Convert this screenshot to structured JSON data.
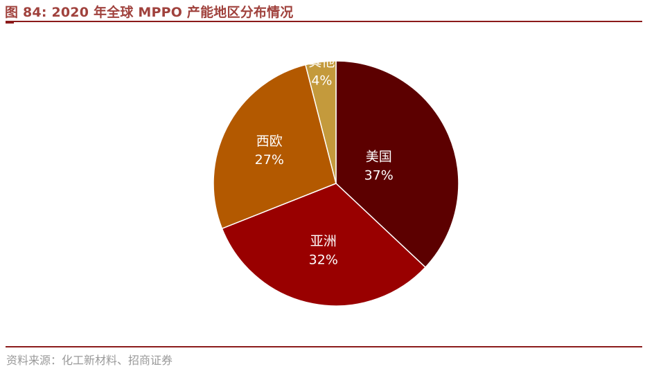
{
  "figure_title": "图 84:  2020 年全球 MPPO 产能地区分布情况",
  "source": "资料来源：化工新材料、招商证券",
  "chart_data": {
    "type": "pie",
    "title": "",
    "slices": [
      {
        "label": "美国",
        "value": 37,
        "value_label": "37%",
        "color": "#5c0000"
      },
      {
        "label": "亚洲",
        "value": 32,
        "value_label": "32%",
        "color": "#990000"
      },
      {
        "label": "西欧",
        "value": 27,
        "value_label": "27%",
        "color": "#b35900"
      },
      {
        "label": "其他",
        "value": 4,
        "value_label": "4%",
        "color": "#c49a3c"
      }
    ],
    "start_angle_deg": 0,
    "direction": "clockwise",
    "legend": "none"
  }
}
